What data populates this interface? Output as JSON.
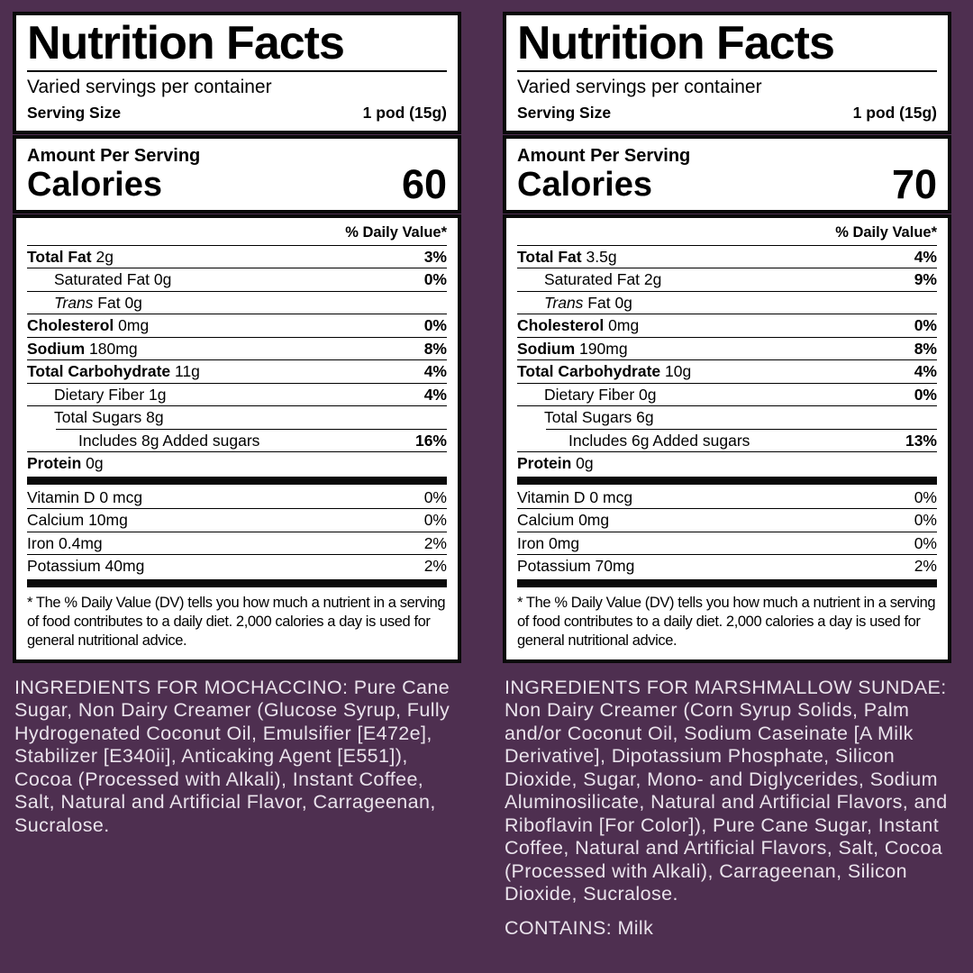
{
  "colors": {
    "background": "#4E2F50",
    "label_background": "#FFFFFF",
    "label_text": "#000000",
    "ingredients_text": "#EAE3EC"
  },
  "labels": [
    {
      "flavor": "MOCHACCINO",
      "title": "Nutrition Facts",
      "servings_per_container": "Varied servings per container",
      "serving_size_label": "Serving Size",
      "serving_size_value": "1 pod (15g)",
      "amount_per_serving_label": "Amount Per Serving",
      "calories_label": "Calories",
      "calories_value": "60",
      "daily_value_header": "% Daily Value*",
      "rows": [
        {
          "bold": "Total Fat",
          "text": "2g",
          "dv": "3%",
          "dv_bold": true,
          "indent": 0,
          "rule": "full"
        },
        {
          "text": "Saturated Fat 0g",
          "dv": "0%",
          "dv_bold": true,
          "indent": 1,
          "rule": "full"
        },
        {
          "italic": "Trans",
          "text": " Fat 0g",
          "dv": "",
          "indent": 1,
          "rule": "full"
        },
        {
          "bold": "Cholesterol",
          "text": "0mg",
          "dv": "0%",
          "dv_bold": true,
          "indent": 0,
          "rule": "full"
        },
        {
          "bold": "Sodium",
          "text": "180mg",
          "dv": "8%",
          "dv_bold": true,
          "indent": 0,
          "rule": "full"
        },
        {
          "bold": "Total Carbohydrate",
          "text": "11g",
          "dv": "4%",
          "dv_bold": true,
          "indent": 0,
          "rule": "full"
        },
        {
          "text": "Dietary Fiber 1g",
          "dv": "4%",
          "dv_bold": true,
          "indent": 1,
          "rule": "full"
        },
        {
          "text": "Total Sugars 8g",
          "dv": "",
          "indent": 1,
          "rule": "indent"
        },
        {
          "text": "Includes 8g Added sugars",
          "dv": "16%",
          "dv_bold": true,
          "indent": 2,
          "rule": "full"
        },
        {
          "bold": "Protein",
          "text": "0g",
          "dv": "",
          "indent": 0,
          "rule": "none"
        }
      ],
      "vitamin_rows": [
        {
          "text": "Vitamin D 0 mcg",
          "dv": "0%",
          "dv_bold": false,
          "indent": 0,
          "rule": "full"
        },
        {
          "text": "Calcium 10mg",
          "dv": "0%",
          "dv_bold": false,
          "indent": 0,
          "rule": "full"
        },
        {
          "text": "Iron 0.4mg",
          "dv": "2%",
          "dv_bold": false,
          "indent": 0,
          "rule": "full"
        },
        {
          "text": "Potassium 40mg",
          "dv": "2%",
          "dv_bold": false,
          "indent": 0,
          "rule": "none"
        }
      ],
      "footnote": "* The % Daily Value (DV) tells you how much a nutrient in a serving of food contributes to a daily diet. 2,000 calories a day is used for general nutritional advice.",
      "ingredients": "INGREDIENTS FOR MOCHACCINO: Pure Cane Sugar, Non Dairy Creamer (Glucose Syrup, Fully Hydrogenated Coconut Oil, Emulsifier [E472e], Stabilizer [E340ii], Anticaking Agent [E551]), Cocoa (Processed with Alkali), Instant Coffee, Salt, Natural and Artificial Flavor, Carrageenan, Sucralose.",
      "contains": ""
    },
    {
      "flavor": "MARSHMALLOW SUNDAE",
      "title": "Nutrition Facts",
      "servings_per_container": "Varied servings per container",
      "serving_size_label": "Serving Size",
      "serving_size_value": "1 pod (15g)",
      "amount_per_serving_label": "Amount Per Serving",
      "calories_label": "Calories",
      "calories_value": "70",
      "daily_value_header": "% Daily Value*",
      "rows": [
        {
          "bold": "Total Fat",
          "text": "3.5g",
          "dv": "4%",
          "dv_bold": true,
          "indent": 0,
          "rule": "full"
        },
        {
          "text": "Saturated Fat 2g",
          "dv": "9%",
          "dv_bold": true,
          "indent": 1,
          "rule": "full"
        },
        {
          "italic": "Trans",
          "text": " Fat 0g",
          "dv": "",
          "indent": 1,
          "rule": "full"
        },
        {
          "bold": "Cholesterol",
          "text": "0mg",
          "dv": "0%",
          "dv_bold": true,
          "indent": 0,
          "rule": "full"
        },
        {
          "bold": "Sodium",
          "text": "190mg",
          "dv": "8%",
          "dv_bold": true,
          "indent": 0,
          "rule": "full"
        },
        {
          "bold": "Total Carbohydrate",
          "text": "10g",
          "dv": "4%",
          "dv_bold": true,
          "indent": 0,
          "rule": "full"
        },
        {
          "text": "Dietary Fiber 0g",
          "dv": "0%",
          "dv_bold": true,
          "indent": 1,
          "rule": "full"
        },
        {
          "text": "Total Sugars 6g",
          "dv": "",
          "indent": 1,
          "rule": "indent"
        },
        {
          "text": "Includes 6g Added sugars",
          "dv": "13%",
          "dv_bold": true,
          "indent": 2,
          "rule": "full"
        },
        {
          "bold": "Protein",
          "text": "0g",
          "dv": "",
          "indent": 0,
          "rule": "none"
        }
      ],
      "vitamin_rows": [
        {
          "text": "Vitamin D 0 mcg",
          "dv": "0%",
          "dv_bold": false,
          "indent": 0,
          "rule": "full"
        },
        {
          "text": "Calcium 0mg",
          "dv": "0%",
          "dv_bold": false,
          "indent": 0,
          "rule": "full"
        },
        {
          "text": "Iron 0mg",
          "dv": "0%",
          "dv_bold": false,
          "indent": 0,
          "rule": "full"
        },
        {
          "text": "Potassium 70mg",
          "dv": "2%",
          "dv_bold": false,
          "indent": 0,
          "rule": "none"
        }
      ],
      "footnote": "* The % Daily Value (DV) tells you how much a nutrient in a serving of food contributes to a daily diet. 2,000 calories a day is used for general nutritional advice.",
      "ingredients": "INGREDIENTS FOR MARSHMALLOW SUNDAE: Non Dairy Creamer (Corn Syrup Solids, Palm and/or Coconut Oil, Sodium Caseinate [A Milk Derivative], Dipotassium Phosphate, Silicon Dioxide, Sugar, Mono- and Diglycerides, Sodium Aluminosilicate, Natural and Artificial Flavors, and Riboflavin [For Color]), Pure Cane Sugar, Instant Coffee, Natural and Artificial Flavors, Salt, Cocoa (Processed with Alkali), Carrageenan, Silicon Dioxide, Sucralose.",
      "contains": "CONTAINS: Milk"
    }
  ]
}
